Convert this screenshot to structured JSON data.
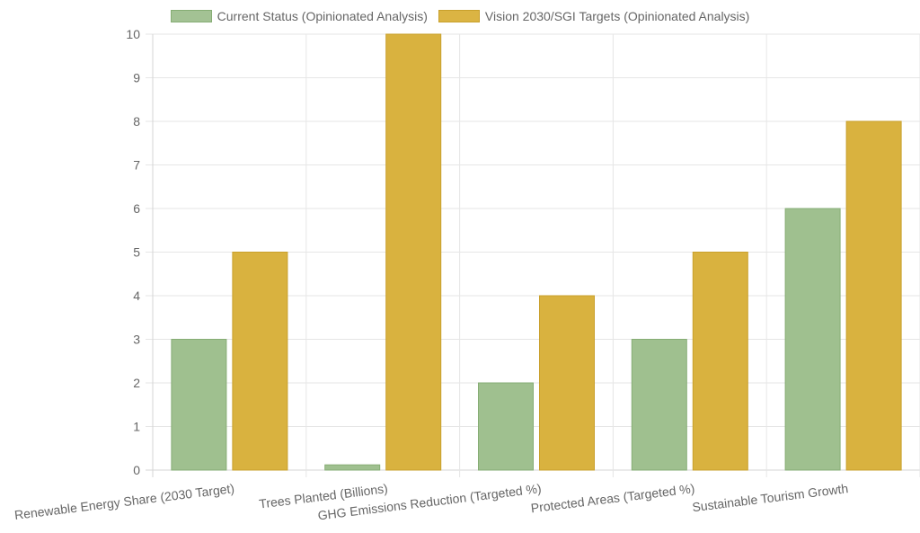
{
  "chart_data": {
    "type": "bar",
    "title": "",
    "xlabel": "",
    "ylabel": "",
    "categories": [
      "Renewable Energy Share (2030 Target)",
      "Trees Planted (Billions)",
      "GHG Emissions Reduction (Targeted %)",
      "Protected Areas (Targeted %)",
      "Sustainable Tourism Growth"
    ],
    "series": [
      {
        "name": "Current Status (Opinionated Analysis)",
        "values": [
          3,
          0.12,
          2,
          3,
          6
        ],
        "fill": "#9fc08f",
        "stroke": "#86ad74"
      },
      {
        "name": "Vision 2030/SGI Targets (Opinionated Analysis)",
        "values": [
          5,
          10,
          4,
          5,
          8
        ],
        "fill": "#d9b23f",
        "stroke": "#c9a02c"
      }
    ],
    "ylim": [
      0,
      10
    ],
    "yticks": [
      "0",
      "1",
      "2",
      "3",
      "4",
      "5",
      "6",
      "7",
      "8",
      "9",
      "10"
    ],
    "grid": true,
    "legend_position": "top"
  }
}
